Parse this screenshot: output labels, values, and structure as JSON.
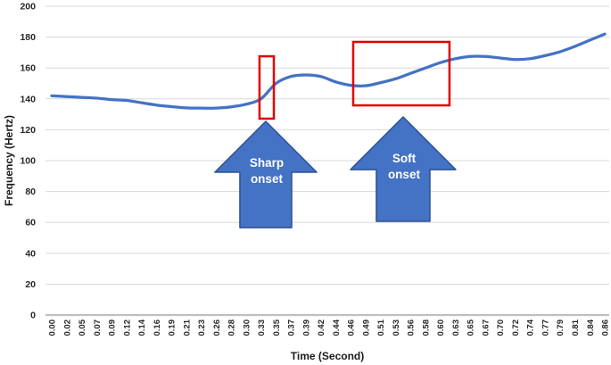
{
  "figure": {
    "description": "Line chart of voice fundamental frequency over time with sharp and soft onset annotations"
  },
  "chart_data": {
    "type": "line",
    "title": "",
    "xlabel": "Time (Second)",
    "ylabel": "Frequency (Hertz)",
    "categories": [
      "0.00",
      "0.02",
      "0.05",
      "0.07",
      "0.09",
      "0.12",
      "0.14",
      "0.16",
      "0.19",
      "0.21",
      "0.23",
      "0.26",
      "0.28",
      "0.30",
      "0.33",
      "0.35",
      "0.37",
      "0.39",
      "0.42",
      "0.44",
      "0.46",
      "0.49",
      "0.51",
      "0.53",
      "0.56",
      "0.58",
      "0.60",
      "0.63",
      "0.65",
      "0.67",
      "0.70",
      "0.72",
      "0.74",
      "0.77",
      "0.79",
      "0.81",
      "0.84",
      "0.86"
    ],
    "series": [
      {
        "name": "Frequency",
        "color": "#4472C4",
        "values": [
          142,
          141.5,
          141,
          140.5,
          139.5,
          139,
          137.5,
          136,
          135,
          134.2,
          134,
          134,
          134.8,
          136.5,
          140,
          150,
          154.5,
          155.5,
          154.5,
          151,
          148.8,
          148.5,
          150.5,
          153,
          156.5,
          160,
          163.5,
          166,
          167.5,
          167.5,
          166.5,
          165.5,
          166,
          168,
          170.5,
          174,
          178,
          182
        ]
      }
    ],
    "ylim": [
      0,
      200
    ],
    "yticks": [
      0,
      20,
      40,
      60,
      80,
      100,
      120,
      140,
      160,
      180,
      200
    ],
    "grid": true,
    "legend": "none",
    "colors": {
      "line": "#4472C4",
      "grid": "#D9D9D9",
      "axis": "#BFBFBF",
      "tick_text": "#262626",
      "annotation_red": "#E10000",
      "arrow_fill": "#4472C4",
      "arrow_stroke": "#2F5597",
      "arrow_text": "#FFFFFF"
    },
    "annotations": {
      "boxes": [
        {
          "name": "sharp-onset-box",
          "x_index_range": [
            13.9,
            14.86
          ],
          "freq_range": [
            127.2,
            167.6
          ]
        },
        {
          "name": "soft-onset-box",
          "x_index_range": [
            20.17,
            26.61
          ],
          "freq_range": [
            135.8,
            176.9
          ]
        }
      ],
      "arrows": [
        {
          "name": "sharp-onset-arrow",
          "label": "Sharp onset",
          "label_lines": [
            "Sharp",
            "onset"
          ],
          "x_index": 14.32,
          "tip_freq": 125.4,
          "head_base_freq": 92.5,
          "base_freq": 56.6,
          "head_halfwidth_idx": 3.4,
          "body_halfwidth_idx": 1.73
        },
        {
          "name": "soft-onset-arrow",
          "label": "Soft onset",
          "label_lines": [
            "Soft",
            "onset"
          ],
          "x_index": 23.51,
          "tip_freq": 128.3,
          "head_base_freq": 94.2,
          "base_freq": 60.7,
          "head_halfwidth_idx": 3.52,
          "body_halfwidth_idx": 1.79
        }
      ]
    }
  }
}
